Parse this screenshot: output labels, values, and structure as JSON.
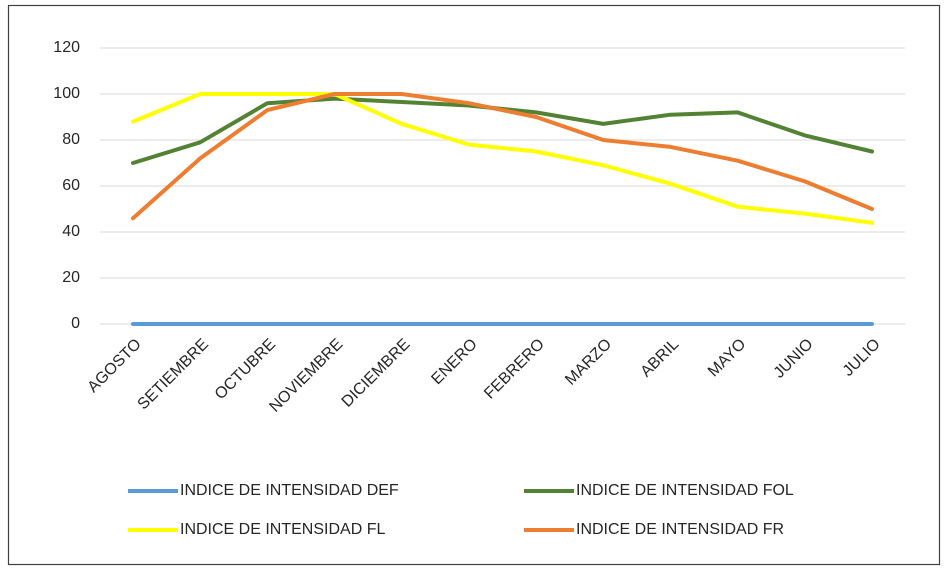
{
  "chart_data": {
    "type": "line",
    "categories": [
      "AGOSTO",
      "SETIEMBRE",
      "OCTUBRE",
      "NOVIEMBRE",
      "DICIEMBRE",
      "ENERO",
      "FEBRERO",
      "MARZO",
      "ABRIL",
      "MAYO",
      "JUNIO",
      "JULIO"
    ],
    "series": [
      {
        "name": "INDICE DE INTENSIDAD DEF",
        "color": "#5b9bd5",
        "values": [
          0,
          0,
          0,
          0,
          0,
          0,
          0,
          0,
          0,
          0,
          0,
          0
        ]
      },
      {
        "name": "INDICE DE INTENSIDAD FOL",
        "color": "#548235",
        "values": [
          70,
          79,
          96,
          98,
          96.5,
          95,
          92,
          87,
          91,
          92,
          82,
          75
        ]
      },
      {
        "name": "INDICE DE INTENSIDAD FL",
        "color": "#ffff00",
        "values": [
          88,
          100,
          100,
          100,
          87,
          78,
          75,
          69,
          61,
          51,
          48,
          44
        ]
      },
      {
        "name": "INDICE DE INTENSIDAD FR",
        "color": "#ed7d31",
        "values": [
          46,
          72,
          93,
          100,
          100,
          96,
          90,
          80,
          77,
          71,
          62,
          50
        ]
      }
    ],
    "ylim": [
      0,
      120
    ],
    "yticks": [
      0,
      20,
      40,
      60,
      80,
      100,
      120
    ],
    "grid": true,
    "legend": "bottom"
  }
}
